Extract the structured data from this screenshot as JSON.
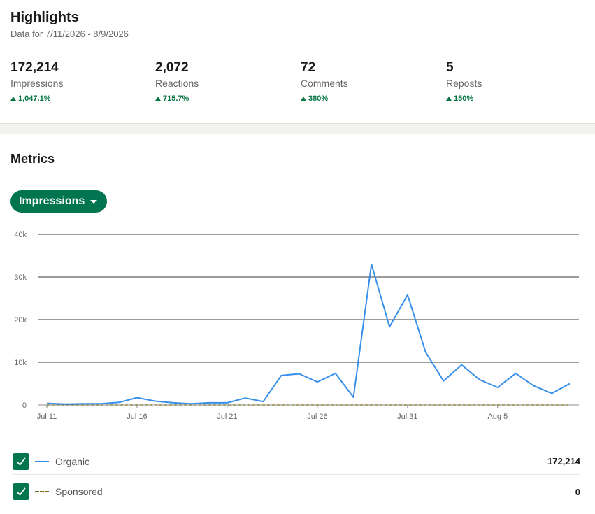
{
  "highlights": {
    "title": "Highlights",
    "date_range": "Data for 7/11/2026 - 8/9/2026",
    "stats": [
      {
        "value": "172,214",
        "label": "Impressions",
        "change": "1,047.1%"
      },
      {
        "value": "2,072",
        "label": "Reactions",
        "change": "715.7%"
      },
      {
        "value": "72",
        "label": "Comments",
        "change": "380%"
      },
      {
        "value": "5",
        "label": "Reposts",
        "change": "150%"
      }
    ]
  },
  "metrics": {
    "title": "Metrics",
    "dropdown_label": "Impressions"
  },
  "colors": {
    "accent": "#01754f",
    "positive": "#057642",
    "organic": "#378fe9",
    "sponsored": "#7a6c1f"
  },
  "chart_data": {
    "type": "line",
    "x": [
      "Jul 11",
      "Jul 12",
      "Jul 13",
      "Jul 14",
      "Jul 15",
      "Jul 16",
      "Jul 17",
      "Jul 18",
      "Jul 19",
      "Jul 20",
      "Jul 21",
      "Jul 22",
      "Jul 23",
      "Jul 24",
      "Jul 25",
      "Jul 26",
      "Jul 27",
      "Jul 28",
      "Jul 29",
      "Jul 30",
      "Jul 31",
      "Aug 1",
      "Aug 2",
      "Aug 3",
      "Aug 4",
      "Aug 5",
      "Aug 6",
      "Aug 7",
      "Aug 8",
      "Aug 9"
    ],
    "x_ticks": [
      "Jul 11",
      "Jul 16",
      "Jul 21",
      "Jul 26",
      "Jul 31",
      "Aug 5"
    ],
    "y_ticks": [
      "0",
      "10k",
      "20k",
      "30k",
      "40k"
    ],
    "ylim": [
      0,
      40000
    ],
    "series": [
      {
        "name": "Organic",
        "values": [
          400,
          200,
          300,
          300,
          600,
          1700,
          900,
          500,
          300,
          500,
          500,
          1600,
          800,
          6900,
          7300,
          5400,
          7400,
          1800,
          33000,
          18300,
          25800,
          12400,
          5600,
          9400,
          5900,
          4100,
          7400,
          4500,
          2700,
          5000
        ]
      },
      {
        "name": "Sponsored",
        "values": [
          0,
          0,
          0,
          0,
          0,
          0,
          0,
          0,
          0,
          0,
          0,
          0,
          0,
          0,
          0,
          0,
          0,
          0,
          0,
          0,
          0,
          0,
          0,
          0,
          0,
          0,
          0,
          0,
          0,
          0
        ]
      }
    ]
  },
  "legend": [
    {
      "label": "Organic",
      "total": "172,214"
    },
    {
      "label": "Sponsored",
      "total": "0"
    }
  ]
}
